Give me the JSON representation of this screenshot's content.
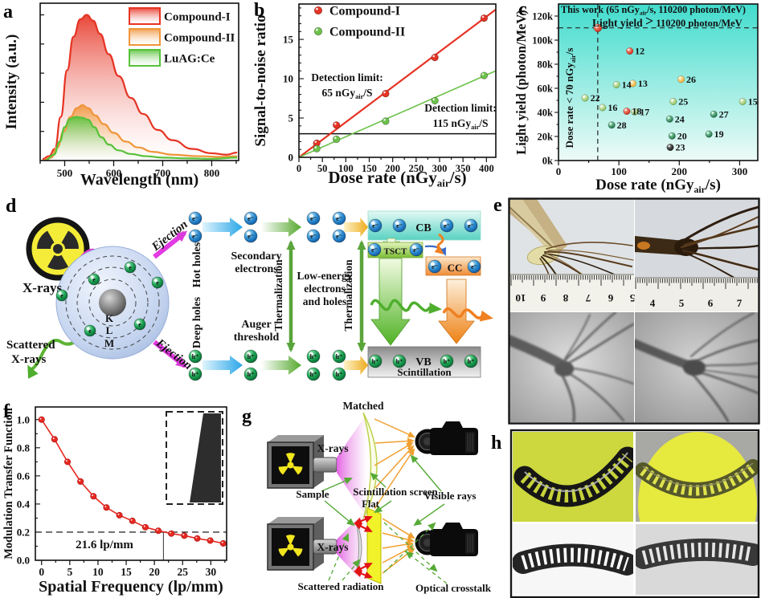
{
  "panel_labels": {
    "a": "a",
    "b": "b",
    "c": "c",
    "d": "d",
    "e": "e",
    "f": "f",
    "g": "g",
    "h": "h"
  },
  "panels": {
    "a": {
      "ylabel": "Intensity (a.u.)",
      "xlabel": "Wavelength (nm)",
      "legend": [
        {
          "label": "Compound-I",
          "color": "#e63323"
        },
        {
          "label": "Compound-II",
          "color": "#f0953a"
        },
        {
          "label": "LuAG:Ce",
          "color": "#57c23a"
        }
      ]
    },
    "b": {
      "ylabel": "Signal-to-noise ratio",
      "xlabel": {
        "pre": "Dose rate (nGy",
        "sub": "air",
        "post": "/s)"
      },
      "legend": [
        {
          "label": "Compound-I",
          "color": "#e63323"
        },
        {
          "label": "Compound-II",
          "color": "#6cc24a"
        }
      ],
      "annotations": [
        {
          "l1": "Detection limit:",
          "l2pre": "65 nGy",
          "l2sub": "air",
          "l2post": "/S"
        },
        {
          "l1": "Detection limit:",
          "l2pre": "115 nGy",
          "l2sub": "air",
          "l2post": "/S"
        }
      ]
    },
    "c": {
      "ylabel": "Light yield (photon/MeV)",
      "xlabel": {
        "pre": "Dose rate (nGy",
        "sub": "air",
        "post": "/s)"
      },
      "title_red": {
        "pre": "This work (65 nGy",
        "sub": "air",
        "post": "/s, 110200 photon/MeV)",
        "color": "#e8251c"
      },
      "title_green": {
        "pre": "Light yield ",
        "gt": ">",
        "post": " 110200 photon/MeV",
        "color": "#2ea04e"
      },
      "side_blue": {
        "pre": "Dose rate < 70 nGy",
        "sub": "air",
        "post": "/s",
        "color": "#1f35cc"
      }
    },
    "d": {
      "xrays": "X-rays",
      "scattered_l1": "Scattered",
      "scattered_l2": "X-rays",
      "ejection_top": "Ejection",
      "ejection_bottom": "Ejection",
      "shells": [
        "K",
        "L",
        "M"
      ],
      "hot_holes": "Hot holes",
      "deep_holes": "Deep holes",
      "secondary_l1": "Secondary",
      "secondary_l2": "electrons",
      "auger_l1": "Auger",
      "auger_l2": "threshold",
      "thermalization": "Thermalization",
      "low_l1": "Low-energy",
      "low_l2": "electrons",
      "low_l3": "and holes",
      "cb": "CB",
      "tsct": "TSCT",
      "cc": "CC",
      "vb": "VB",
      "scintillation": "Scintillation",
      "electron_symbol": "e⁻",
      "hole_symbol": "h⁺",
      "atom_electron_symbol": "e"
    },
    "e": {
      "ruler_left_numbers": [
        "10",
        "9",
        "8",
        "7",
        "6",
        "5"
      ],
      "ruler_right_numbers": [
        "4",
        "5",
        "6",
        "7"
      ]
    },
    "f": {
      "ylabel": "Modulation Transfer Function",
      "xlabel": "Spatial Frequency (lp/mm)",
      "annotation": "21.6 lp/mm"
    },
    "g": {
      "matched": "Matched",
      "flat": "Flat",
      "xrays_top": "X-rays",
      "xrays_bottom": "X-rays",
      "sample": "Sample",
      "screen": "Scintillation screen",
      "visible": "Visible rays",
      "scattered": "Scattered radiation",
      "crosstalk": "Optical crosstalk"
    }
  },
  "chart_data": [
    {
      "id": "a",
      "type": "area",
      "xlabel": "Wavelength (nm)",
      "ylabel": "Intensity (a.u.)",
      "xlim": [
        450,
        855
      ],
      "ylim": [
        0,
        1.08
      ],
      "xticks": [
        500,
        600,
        700,
        800
      ],
      "series": [
        {
          "name": "Compound-I",
          "color": "#e63323",
          "points": [
            [
              455,
              0.01
            ],
            [
              468,
              0.03
            ],
            [
              480,
              0.08
            ],
            [
              492,
              0.3
            ],
            [
              505,
              0.62
            ],
            [
              518,
              0.85
            ],
            [
              532,
              0.97
            ],
            [
              545,
              1.0
            ],
            [
              558,
              0.96
            ],
            [
              572,
              0.87
            ],
            [
              590,
              0.73
            ],
            [
              610,
              0.58
            ],
            [
              635,
              0.43
            ],
            [
              660,
              0.32
            ],
            [
              690,
              0.21
            ],
            [
              720,
              0.14
            ],
            [
              760,
              0.08
            ],
            [
              800,
              0.05
            ],
            [
              830,
              0.04
            ],
            [
              852,
              0.055
            ]
          ]
        },
        {
          "name": "Compound-II",
          "color": "#f0953a",
          "points": [
            [
              458,
              0.005
            ],
            [
              472,
              0.02
            ],
            [
              485,
              0.09
            ],
            [
              498,
              0.2
            ],
            [
              512,
              0.3
            ],
            [
              525,
              0.36
            ],
            [
              536,
              0.38
            ],
            [
              548,
              0.36
            ],
            [
              562,
              0.31
            ],
            [
              580,
              0.25
            ],
            [
              600,
              0.19
            ],
            [
              625,
              0.13
            ],
            [
              650,
              0.09
            ],
            [
              680,
              0.06
            ],
            [
              720,
              0.04
            ],
            [
              770,
              0.03
            ],
            [
              820,
              0.025
            ],
            [
              852,
              0.03
            ]
          ]
        },
        {
          "name": "LuAG:Ce",
          "color": "#57c23a",
          "points": [
            [
              462,
              0.005
            ],
            [
              478,
              0.04
            ],
            [
              490,
              0.13
            ],
            [
              500,
              0.23
            ],
            [
              510,
              0.285
            ],
            [
              522,
              0.3
            ],
            [
              535,
              0.295
            ],
            [
              548,
              0.28
            ],
            [
              560,
              0.23
            ],
            [
              575,
              0.16
            ],
            [
              590,
              0.11
            ],
            [
              610,
              0.07
            ],
            [
              635,
              0.045
            ],
            [
              665,
              0.03
            ],
            [
              700,
              0.02
            ],
            [
              750,
              0.015
            ],
            [
              800,
              0.012
            ],
            [
              852,
              0.02
            ]
          ]
        }
      ]
    },
    {
      "id": "b",
      "type": "scatter",
      "xlim": [
        0,
        420
      ],
      "ylim": [
        0,
        19.5
      ],
      "xticks": [
        0,
        50,
        100,
        150,
        200,
        250,
        300,
        350,
        400
      ],
      "yticks": [
        0,
        5,
        10,
        15
      ],
      "threshold_y": 3,
      "series": [
        {
          "name": "Compound-I",
          "color": "#e63323",
          "points": [
            [
              38,
              1.8
            ],
            [
              80,
              4.1
            ],
            [
              185,
              8.1
            ],
            [
              290,
              12.7
            ],
            [
              395,
              17.7
            ]
          ],
          "fit": [
            [
              0,
              0
            ],
            [
              420,
              18.8
            ]
          ]
        },
        {
          "name": "Compound-II",
          "color": "#6cc24a",
          "points": [
            [
              38,
              1.1
            ],
            [
              80,
              2.3
            ],
            [
              185,
              4.6
            ],
            [
              290,
              7.2
            ],
            [
              395,
              10.4
            ]
          ],
          "fit": [
            [
              0,
              0
            ],
            [
              420,
              11.0
            ]
          ]
        }
      ]
    },
    {
      "id": "c",
      "type": "scatter",
      "xlim": [
        0,
        330
      ],
      "ylim": [
        0,
        130000
      ],
      "xticks": [
        0,
        100,
        200,
        300
      ],
      "yticks": [
        0,
        20000,
        40000,
        60000,
        80000,
        100000,
        120000
      ],
      "ytick_labels": [
        "0k",
        "20k",
        "40k",
        "60k",
        "80k",
        "100k",
        "120k"
      ],
      "dashed_x": 65,
      "dashed_y": 110200,
      "point_styles": {
        "red": [
          "#ffb39f",
          "#cc1500"
        ],
        "amber": [
          "#fff3c8",
          "#eda21e"
        ],
        "pale": [
          "#f2fadf",
          "#7ab648"
        ],
        "dark": [
          "#9fe8c0",
          "#0a5c30"
        ],
        "black": [
          "#909090",
          "#000000"
        ]
      },
      "points": [
        {
          "x": 65,
          "y": 110200,
          "label": "",
          "style": "red"
        },
        {
          "x": 118,
          "y": 91000,
          "label": "12",
          "style": "red"
        },
        {
          "x": 123,
          "y": 64000,
          "label": "13",
          "style": "amber"
        },
        {
          "x": 96,
          "y": 63000,
          "label": "14",
          "style": "pale"
        },
        {
          "x": 305,
          "y": 49000,
          "label": "15",
          "style": "pale"
        },
        {
          "x": 73,
          "y": 44000,
          "label": "16",
          "style": "pale"
        },
        {
          "x": 126,
          "y": 40500,
          "label": "17",
          "style": "pale"
        },
        {
          "x": 113,
          "y": 41000,
          "label": "18",
          "style": "red"
        },
        {
          "x": 249,
          "y": 22000,
          "label": "19",
          "style": "dark"
        },
        {
          "x": 188,
          "y": 20500,
          "label": "20",
          "style": "dark"
        },
        {
          "x": 44,
          "y": 52000,
          "label": "22",
          "style": "pale"
        },
        {
          "x": 185,
          "y": 11000,
          "label": "23",
          "style": "black"
        },
        {
          "x": 184,
          "y": 34500,
          "label": "24",
          "style": "dark"
        },
        {
          "x": 190,
          "y": 49000,
          "label": "25",
          "style": "pale"
        },
        {
          "x": 203,
          "y": 67500,
          "label": "26",
          "style": "amber"
        },
        {
          "x": 257,
          "y": 38500,
          "label": "27",
          "style": "dark"
        },
        {
          "x": 88,
          "y": 29500,
          "label": "28",
          "style": "dark"
        }
      ]
    },
    {
      "id": "f",
      "type": "line",
      "color": "#e62820",
      "xlim": [
        -1.1,
        32.8
      ],
      "ylim": [
        0,
        1.09
      ],
      "xticks": [
        0,
        5,
        10,
        15,
        20,
        25,
        30
      ],
      "yticks": [
        0,
        0.2,
        0.4,
        0.6,
        0.8,
        1.0
      ],
      "x": [
        0,
        2.3,
        4.6,
        6.9,
        9.2,
        11.5,
        13.8,
        16.1,
        18.4,
        20.7,
        23,
        25.3,
        27.6,
        29.9,
        32.2
      ],
      "y": [
        1.0,
        0.86,
        0.7,
        0.56,
        0.455,
        0.375,
        0.32,
        0.28,
        0.235,
        0.21,
        0.19,
        0.175,
        0.155,
        0.14,
        0.12
      ],
      "hline": 0.2,
      "vline": 21.6
    }
  ]
}
